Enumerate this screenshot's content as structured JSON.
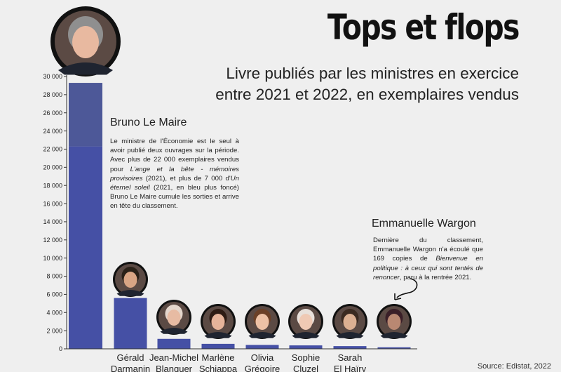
{
  "title": "Tops et flops",
  "subtitle": "Livre publiés par les ministres en exercice entre 2021 et 2022, en exemplaires vendus",
  "source": "Source: Edistat, 2022",
  "annotations": {
    "lemaire": {
      "name": "Bruno Le Maire",
      "t1": "Le ministre de l'Économie est le seul à avoir publié deux ouvrages sur la période. Avec plus de 22 000 exemplaires vendus pour ",
      "i1": "L'ange et la bête - mémoires provisoires",
      "t2": " (2021), et plus de 7 000 d'",
      "i2": "Un éternel soleil",
      "t3": " (2021, en bleu plus foncé) Bruno Le Maire cumule les sorties et arrive en tête du classement."
    },
    "wargon": {
      "name": "Emmanuelle Wargon",
      "t1": "Dernière du classement, Emmanuelle Wargon n'a écoulé que 169 copies de ",
      "i1": "Bienvenue en politique : à ceux qui sont tentés de renoncer",
      "t2": ", paru à la rentrée 2021."
    }
  },
  "chart_data": {
    "type": "bar",
    "stacked": true,
    "title": "Tops et flops",
    "subtitle": "Livre publiés par les ministres en exercice entre 2021 et 2022, en exemplaires vendus",
    "ylim": [
      0,
      30000
    ],
    "yticks": [
      0,
      2000,
      4000,
      6000,
      8000,
      10000,
      12000,
      14000,
      16000,
      18000,
      20000,
      22000,
      24000,
      26000,
      28000,
      30000
    ],
    "ytick_labels": [
      "0",
      "2 000",
      "4 000",
      "6 000",
      "8 000",
      "10 000",
      "12 000",
      "14 000",
      "16 000",
      "18 000",
      "20 000",
      "22 000",
      "24 000",
      "26 000",
      "28 000",
      "30 000"
    ],
    "categories": [
      [
        "",
        ""
      ],
      [
        "Gérald",
        "Darmanin"
      ],
      [
        "Jean-Michel",
        "Blanquer"
      ],
      [
        "Marlène",
        "Schiappa"
      ],
      [
        "Olivia",
        "Grégoire"
      ],
      [
        "Sophie",
        "Cluzel"
      ],
      [
        "Sarah",
        "El Haïry"
      ],
      [
        "",
        ""
      ]
    ],
    "series": [
      {
        "values": [
          22300,
          5600,
          1100,
          550,
          430,
          380,
          300,
          169
        ],
        "color": "#4550a5"
      },
      {
        "values": [
          7000,
          0,
          0,
          0,
          0,
          0,
          0,
          0
        ],
        "color": "#4d5898"
      }
    ],
    "avatars": [
      {
        "icon": "avatar-bruno-le-maire",
        "skin": "#e8b9a0",
        "hair": "#8f8f8f"
      },
      {
        "icon": "avatar-gerald-darmanin",
        "skin": "#d9a584",
        "hair": "#2a2118"
      },
      {
        "icon": "avatar-jean-michel-blanquer",
        "skin": "#e7bba3",
        "hair": "#e4d6cc"
      },
      {
        "icon": "avatar-marlene-schiappa",
        "skin": "#e6b49a",
        "hair": "#2e1c14"
      },
      {
        "icon": "avatar-olivia-gregoire",
        "skin": "#edc1a5",
        "hair": "#6b4027"
      },
      {
        "icon": "avatar-sophie-cluzel",
        "skin": "#efc9b4",
        "hair": "#e8e0da"
      },
      {
        "icon": "avatar-sarah-el-hairy",
        "skin": "#dcb092",
        "hair": "#3b2a20"
      },
      {
        "icon": "avatar-emmanuelle-wargon",
        "skin": "#b98872",
        "hair": "#3a1f28"
      }
    ]
  }
}
